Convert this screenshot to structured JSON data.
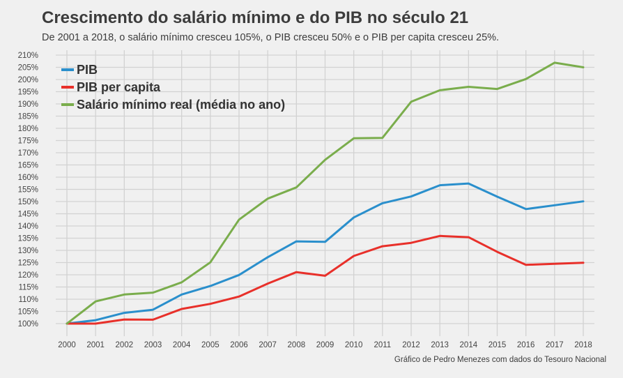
{
  "chart_data": {
    "type": "line",
    "title": "Crescimento do salário mínimo e do PIB no século 21",
    "subtitle": "De 2001 a 2018, o salário mínimo cresceu 105%, o PIB cresceu 50% e o PIB per capita cresceu 25%.",
    "credit": "Gráfico de Pedro Menezes com dados do Tesouro Nacional",
    "x": [
      2000,
      2001,
      2002,
      2003,
      2004,
      2005,
      2006,
      2007,
      2008,
      2009,
      2010,
      2011,
      2012,
      2013,
      2014,
      2015,
      2016,
      2017,
      2018
    ],
    "x_tick_labels": [
      "2000",
      "2001",
      "2002",
      "2003",
      "2004",
      "2005",
      "2006",
      "2007",
      "2008",
      "2009",
      "2010",
      "2011",
      "2012",
      "2013",
      "2014",
      "2015",
      "2016",
      "2017",
      "2018"
    ],
    "ylim": [
      97,
      211
    ],
    "y_ticks": [
      100,
      105,
      110,
      115,
      120,
      125,
      130,
      135,
      140,
      145,
      150,
      155,
      160,
      165,
      170,
      175,
      180,
      185,
      190,
      195,
      200,
      205,
      210
    ],
    "y_tick_labels": [
      "100%",
      "105%",
      "110%",
      "115%",
      "120%",
      "125%",
      "130%",
      "135%",
      "140%",
      "145%",
      "150%",
      "155%",
      "160%",
      "165%",
      "170%",
      "175%",
      "180%",
      "185%",
      "190%",
      "195%",
      "200%",
      "205%",
      "210%"
    ],
    "grid": true,
    "legend_position": "top-left",
    "series": [
      {
        "name": "PIB",
        "color": "#2a8fcc",
        "values": [
          100,
          101.4,
          104.4,
          105.7,
          111.9,
          115.4,
          119.9,
          127.2,
          133.7,
          133.5,
          143.5,
          149.3,
          152.1,
          156.7,
          157.4,
          152.0,
          146.9,
          148.5,
          150.1
        ]
      },
      {
        "name": "PIB per capita",
        "color": "#e8302a",
        "values": [
          100,
          100.0,
          101.7,
          101.6,
          106.0,
          108.1,
          111.1,
          116.4,
          121.1,
          119.6,
          127.7,
          131.7,
          133.1,
          135.9,
          135.4,
          129.4,
          124.1,
          124.5,
          124.9
        ]
      },
      {
        "name": "Salário mínimo real (média no ano)",
        "color": "#7aad4c",
        "values": [
          100,
          109.1,
          111.9,
          112.7,
          116.9,
          125.1,
          142.6,
          151.2,
          155.8,
          167.1,
          175.9,
          176.1,
          190.9,
          195.6,
          197.0,
          196.1,
          200.2,
          206.9,
          205.0
        ]
      }
    ]
  }
}
